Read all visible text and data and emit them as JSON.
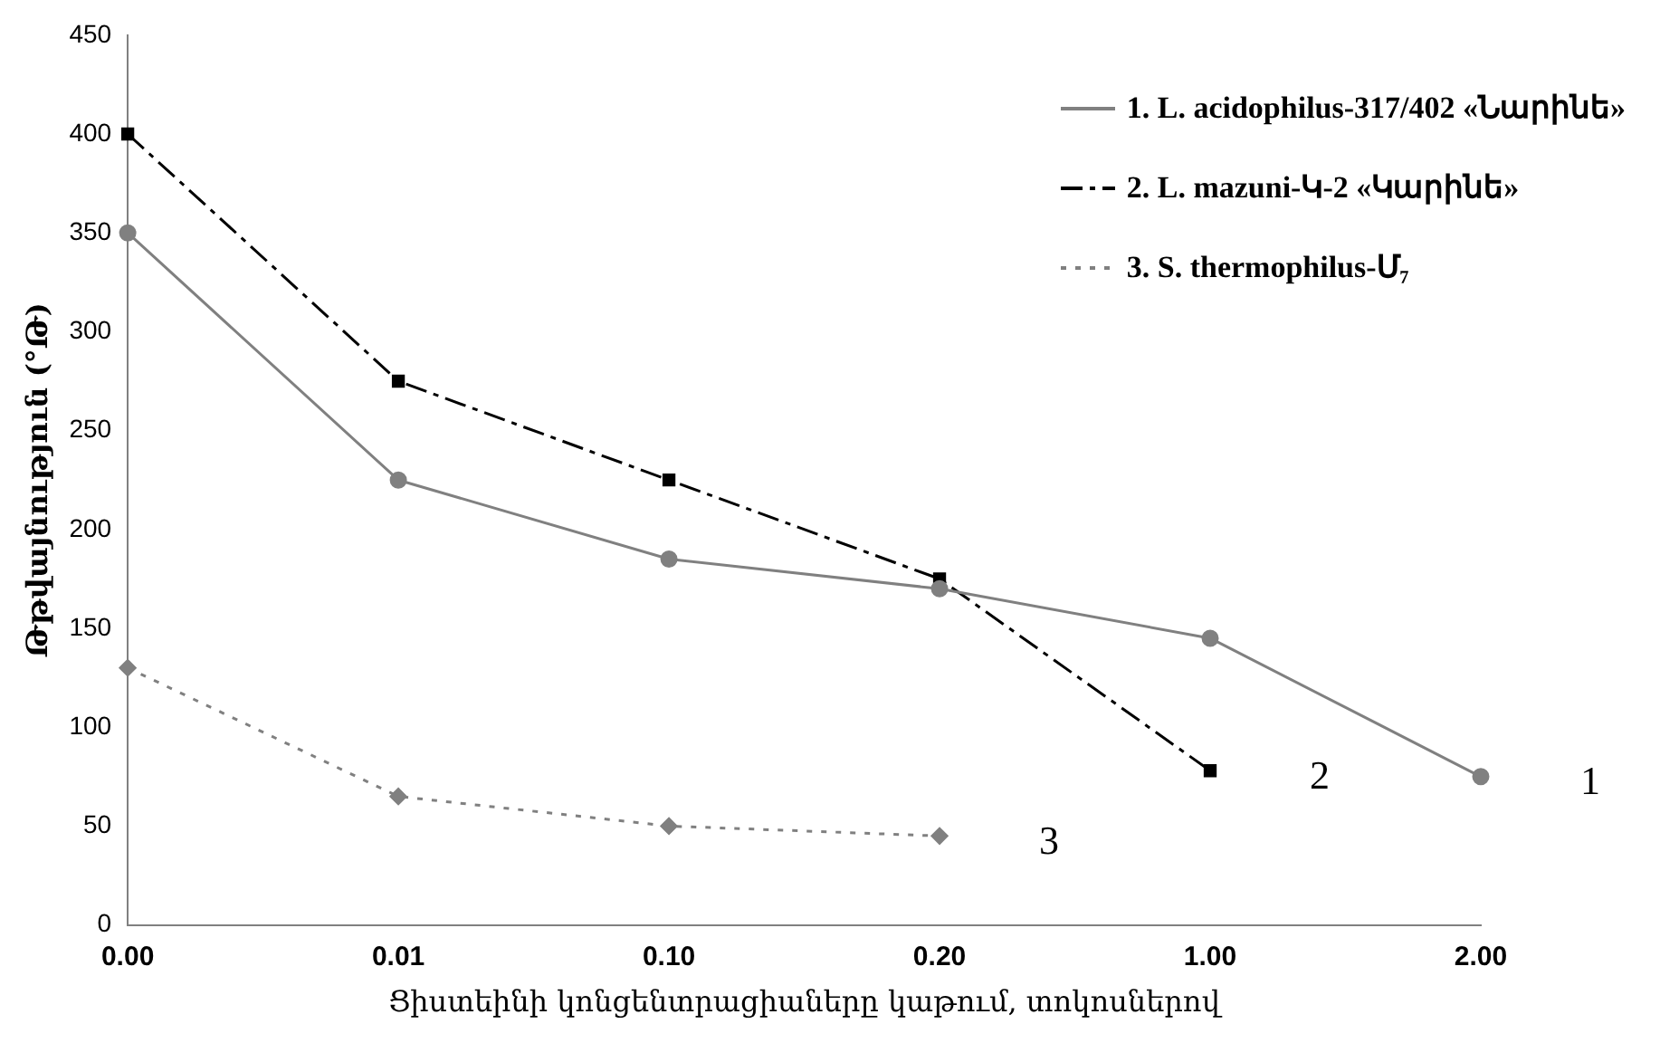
{
  "chart_data": {
    "type": "line",
    "xlabel": "Ցիստեինի կոնցենտրացիաները կաթում, տոկոսներով",
    "ylabel": "Թթվայնություն (°Թ)",
    "categories": [
      "0.00",
      "0.01",
      "0.10",
      "0.20",
      "1.00",
      "2.00"
    ],
    "series": [
      {
        "name": "1. L. acidophilus-317/402 «Նարինե»",
        "color": "#808080",
        "marker": "circle",
        "line_style": "solid",
        "values": [
          350,
          225,
          185,
          170,
          145,
          75
        ]
      },
      {
        "name": "2. L. mazuni-Կ-2 «Կարինե»",
        "color": "#000000",
        "marker": "square",
        "line_style": "dashed",
        "values": [
          400,
          275,
          225,
          175,
          78,
          null
        ]
      },
      {
        "name": "3. S. thermophilus-Մ₇",
        "color": "#808080",
        "marker": "diamond",
        "line_style": "dotted",
        "values": [
          130,
          65,
          50,
          45,
          null,
          null
        ]
      }
    ],
    "annotations": [
      {
        "text": "1",
        "x": "2.00",
        "y": 75
      },
      {
        "text": "2",
        "x": "1.00",
        "y": 78
      },
      {
        "text": "3",
        "x": "0.20",
        "y": 45
      }
    ],
    "ylim": [
      0,
      450
    ],
    "yticks": [
      0,
      50,
      100,
      150,
      200,
      250,
      300,
      350,
      400,
      450
    ],
    "grid": false,
    "legend": "top right"
  }
}
